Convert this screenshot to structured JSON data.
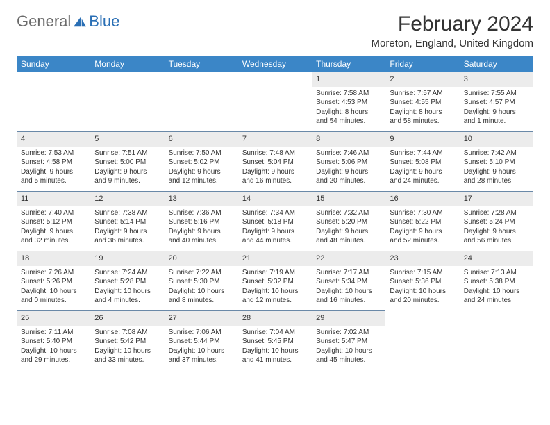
{
  "logo": {
    "general": "General",
    "blue": "Blue"
  },
  "title": "February 2024",
  "location": "Moreton, England, United Kingdom",
  "colors": {
    "header_bg": "#3b86c7",
    "daynum_bg": "#ececec",
    "border": "#6a89a8"
  },
  "weekdays": [
    "Sunday",
    "Monday",
    "Tuesday",
    "Wednesday",
    "Thursday",
    "Friday",
    "Saturday"
  ],
  "weeks": [
    [
      null,
      null,
      null,
      null,
      {
        "n": "1",
        "sr": "Sunrise: 7:58 AM",
        "ss": "Sunset: 4:53 PM",
        "d1": "Daylight: 8 hours",
        "d2": "and 54 minutes."
      },
      {
        "n": "2",
        "sr": "Sunrise: 7:57 AM",
        "ss": "Sunset: 4:55 PM",
        "d1": "Daylight: 8 hours",
        "d2": "and 58 minutes."
      },
      {
        "n": "3",
        "sr": "Sunrise: 7:55 AM",
        "ss": "Sunset: 4:57 PM",
        "d1": "Daylight: 9 hours",
        "d2": "and 1 minute."
      }
    ],
    [
      {
        "n": "4",
        "sr": "Sunrise: 7:53 AM",
        "ss": "Sunset: 4:58 PM",
        "d1": "Daylight: 9 hours",
        "d2": "and 5 minutes."
      },
      {
        "n": "5",
        "sr": "Sunrise: 7:51 AM",
        "ss": "Sunset: 5:00 PM",
        "d1": "Daylight: 9 hours",
        "d2": "and 9 minutes."
      },
      {
        "n": "6",
        "sr": "Sunrise: 7:50 AM",
        "ss": "Sunset: 5:02 PM",
        "d1": "Daylight: 9 hours",
        "d2": "and 12 minutes."
      },
      {
        "n": "7",
        "sr": "Sunrise: 7:48 AM",
        "ss": "Sunset: 5:04 PM",
        "d1": "Daylight: 9 hours",
        "d2": "and 16 minutes."
      },
      {
        "n": "8",
        "sr": "Sunrise: 7:46 AM",
        "ss": "Sunset: 5:06 PM",
        "d1": "Daylight: 9 hours",
        "d2": "and 20 minutes."
      },
      {
        "n": "9",
        "sr": "Sunrise: 7:44 AM",
        "ss": "Sunset: 5:08 PM",
        "d1": "Daylight: 9 hours",
        "d2": "and 24 minutes."
      },
      {
        "n": "10",
        "sr": "Sunrise: 7:42 AM",
        "ss": "Sunset: 5:10 PM",
        "d1": "Daylight: 9 hours",
        "d2": "and 28 minutes."
      }
    ],
    [
      {
        "n": "11",
        "sr": "Sunrise: 7:40 AM",
        "ss": "Sunset: 5:12 PM",
        "d1": "Daylight: 9 hours",
        "d2": "and 32 minutes."
      },
      {
        "n": "12",
        "sr": "Sunrise: 7:38 AM",
        "ss": "Sunset: 5:14 PM",
        "d1": "Daylight: 9 hours",
        "d2": "and 36 minutes."
      },
      {
        "n": "13",
        "sr": "Sunrise: 7:36 AM",
        "ss": "Sunset: 5:16 PM",
        "d1": "Daylight: 9 hours",
        "d2": "and 40 minutes."
      },
      {
        "n": "14",
        "sr": "Sunrise: 7:34 AM",
        "ss": "Sunset: 5:18 PM",
        "d1": "Daylight: 9 hours",
        "d2": "and 44 minutes."
      },
      {
        "n": "15",
        "sr": "Sunrise: 7:32 AM",
        "ss": "Sunset: 5:20 PM",
        "d1": "Daylight: 9 hours",
        "d2": "and 48 minutes."
      },
      {
        "n": "16",
        "sr": "Sunrise: 7:30 AM",
        "ss": "Sunset: 5:22 PM",
        "d1": "Daylight: 9 hours",
        "d2": "and 52 minutes."
      },
      {
        "n": "17",
        "sr": "Sunrise: 7:28 AM",
        "ss": "Sunset: 5:24 PM",
        "d1": "Daylight: 9 hours",
        "d2": "and 56 minutes."
      }
    ],
    [
      {
        "n": "18",
        "sr": "Sunrise: 7:26 AM",
        "ss": "Sunset: 5:26 PM",
        "d1": "Daylight: 10 hours",
        "d2": "and 0 minutes."
      },
      {
        "n": "19",
        "sr": "Sunrise: 7:24 AM",
        "ss": "Sunset: 5:28 PM",
        "d1": "Daylight: 10 hours",
        "d2": "and 4 minutes."
      },
      {
        "n": "20",
        "sr": "Sunrise: 7:22 AM",
        "ss": "Sunset: 5:30 PM",
        "d1": "Daylight: 10 hours",
        "d2": "and 8 minutes."
      },
      {
        "n": "21",
        "sr": "Sunrise: 7:19 AM",
        "ss": "Sunset: 5:32 PM",
        "d1": "Daylight: 10 hours",
        "d2": "and 12 minutes."
      },
      {
        "n": "22",
        "sr": "Sunrise: 7:17 AM",
        "ss": "Sunset: 5:34 PM",
        "d1": "Daylight: 10 hours",
        "d2": "and 16 minutes."
      },
      {
        "n": "23",
        "sr": "Sunrise: 7:15 AM",
        "ss": "Sunset: 5:36 PM",
        "d1": "Daylight: 10 hours",
        "d2": "and 20 minutes."
      },
      {
        "n": "24",
        "sr": "Sunrise: 7:13 AM",
        "ss": "Sunset: 5:38 PM",
        "d1": "Daylight: 10 hours",
        "d2": "and 24 minutes."
      }
    ],
    [
      {
        "n": "25",
        "sr": "Sunrise: 7:11 AM",
        "ss": "Sunset: 5:40 PM",
        "d1": "Daylight: 10 hours",
        "d2": "and 29 minutes."
      },
      {
        "n": "26",
        "sr": "Sunrise: 7:08 AM",
        "ss": "Sunset: 5:42 PM",
        "d1": "Daylight: 10 hours",
        "d2": "and 33 minutes."
      },
      {
        "n": "27",
        "sr": "Sunrise: 7:06 AM",
        "ss": "Sunset: 5:44 PM",
        "d1": "Daylight: 10 hours",
        "d2": "and 37 minutes."
      },
      {
        "n": "28",
        "sr": "Sunrise: 7:04 AM",
        "ss": "Sunset: 5:45 PM",
        "d1": "Daylight: 10 hours",
        "d2": "and 41 minutes."
      },
      {
        "n": "29",
        "sr": "Sunrise: 7:02 AM",
        "ss": "Sunset: 5:47 PM",
        "d1": "Daylight: 10 hours",
        "d2": "and 45 minutes."
      },
      null,
      null
    ]
  ]
}
